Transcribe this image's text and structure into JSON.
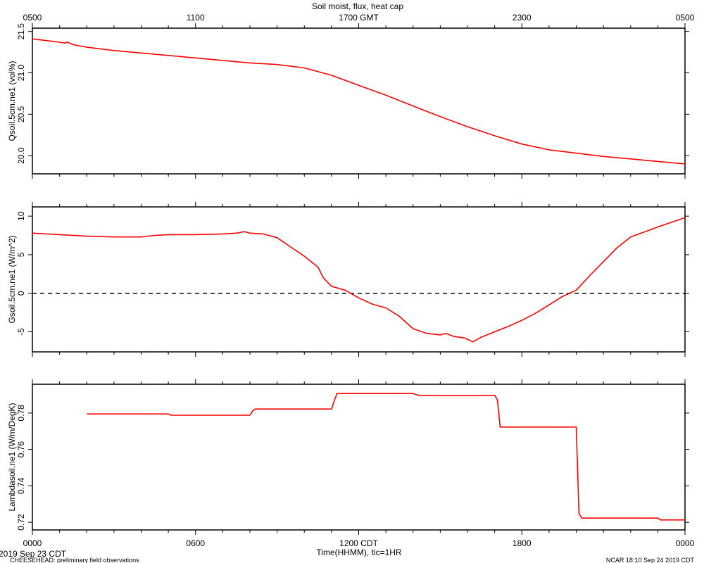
{
  "chart_data": {
    "type": "line",
    "title": "Soil moist, flux, heat cap",
    "top_axis": {
      "labels": [
        "0500",
        "1100",
        "1700 GMT",
        "2300",
        "0500"
      ],
      "hours": [
        0,
        6,
        12,
        18,
        24
      ]
    },
    "bottom_axis": {
      "labels": [
        "0000",
        "0600",
        "1200 CDT",
        "1800",
        "0000"
      ],
      "hours": [
        0,
        6,
        12,
        18,
        24
      ],
      "xlabel": "Time(HHMM), tic=1HR"
    },
    "x_range_hours": [
      0,
      24
    ],
    "panels": [
      {
        "ylabel": "Qsoil.5cm.ne1 (vol%)",
        "ylim": [
          19.78,
          21.54
        ],
        "yticks": [
          20.0,
          20.5,
          21.0,
          21.5
        ],
        "ytick_labels": [
          "20.0",
          "20.5",
          "21.0",
          "21.5"
        ],
        "series": [
          {
            "color": "#ff0000",
            "x": [
              0,
              0.5,
              1.0,
              1.2,
              1.3,
              1.5,
              2,
              3,
              4,
              5,
              6,
              7,
              8,
              9,
              10,
              11,
              11.5,
              12,
              13,
              14,
              15,
              16,
              17,
              18,
              19,
              20,
              21,
              22,
              23,
              24
            ],
            "y": [
              21.41,
              21.39,
              21.37,
              21.36,
              21.37,
              21.34,
              21.31,
              21.27,
              21.24,
              21.21,
              21.18,
              21.15,
              21.12,
              21.1,
              21.06,
              20.97,
              20.91,
              20.85,
              20.73,
              20.6,
              20.47,
              20.35,
              20.24,
              20.14,
              20.07,
              20.03,
              19.99,
              19.96,
              19.93,
              19.9
            ]
          }
        ]
      },
      {
        "ylabel": "Gsoil.5cm.ne1 (W/m^2)",
        "ylim": [
          -7.6,
          11.2
        ],
        "yticks": [
          -5,
          0,
          5,
          10
        ],
        "ytick_labels": [
          "-5",
          "0",
          "5",
          "10"
        ],
        "zero_line": true,
        "series": [
          {
            "color": "#ff0000",
            "x": [
              0,
              1,
              2,
              3,
              4,
              4.5,
              5,
              6,
              7,
              7.5,
              7.8,
              8,
              8.5,
              9,
              9.5,
              10,
              10.5,
              10.7,
              11,
              11.5,
              12,
              12.5,
              13,
              13.5,
              14,
              14.5,
              15,
              15.2,
              15.5,
              15.9,
              16.2,
              16.5,
              17,
              17.5,
              18,
              18.5,
              19,
              19.5,
              20,
              20.5,
              21,
              21.5,
              22,
              23,
              24
            ],
            "y": [
              7.8,
              7.6,
              7.4,
              7.3,
              7.3,
              7.5,
              7.6,
              7.6,
              7.7,
              7.8,
              8.0,
              7.8,
              7.7,
              7.2,
              6.0,
              4.8,
              3.4,
              2.0,
              0.9,
              0.4,
              -0.6,
              -1.4,
              -1.9,
              -3.0,
              -4.6,
              -5.2,
              -5.4,
              -5.2,
              -5.6,
              -5.8,
              -6.3,
              -5.7,
              -5.0,
              -4.3,
              -3.5,
              -2.6,
              -1.5,
              -0.4,
              0.4,
              2.3,
              4.1,
              5.9,
              7.3,
              8.6,
              9.8
            ]
          }
        ]
      },
      {
        "ylabel": "Lambdasoil.ne1 (W/m/DegK)",
        "ylim": [
          0.7158,
          0.7958
        ],
        "yticks": [
          0.72,
          0.74,
          0.76,
          0.78
        ],
        "ytick_labels": [
          "0.72",
          "0.74",
          "0.76",
          "0.78"
        ],
        "series": [
          {
            "color": "#ff0000",
            "x": [
              2.0,
              5.0,
              5.1,
              8.0,
              8.1,
              8.2,
              11.0,
              11.1,
              11.2,
              14.0,
              14.2,
              17.0,
              17.1,
              17.2,
              20.0,
              20.1,
              20.2,
              23.0,
              23.1,
              24.0
            ],
            "y": [
              0.7795,
              0.7795,
              0.7788,
              0.7788,
              0.7812,
              0.7822,
              0.7822,
              0.7866,
              0.7907,
              0.7907,
              0.7897,
              0.7897,
              0.7873,
              0.7723,
              0.7723,
              0.7248,
              0.7223,
              0.7223,
              0.7213,
              0.7213
            ]
          }
        ]
      }
    ]
  },
  "footer": {
    "date_label": "2019 Sep 23 CDT",
    "project_label": "CHEESEHEAD: preliminary field observations",
    "stamp_label": "NCAR 18:10 Sep 24 2019 CDT"
  }
}
